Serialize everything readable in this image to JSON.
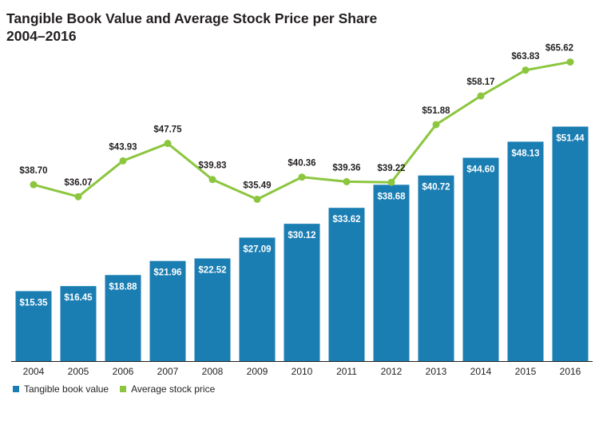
{
  "chart_data": {
    "type": "bar",
    "title": "Tangible Book Value and Average Stock Price per Share",
    "subtitle": "2004–2016",
    "categories": [
      "2004",
      "2005",
      "2006",
      "2007",
      "2008",
      "2009",
      "2010",
      "2011",
      "2012",
      "2013",
      "2014",
      "2015",
      "2016"
    ],
    "series": [
      {
        "name": "Tangible book value",
        "type": "bar",
        "color": "#1a7eb3",
        "values": [
          15.35,
          16.45,
          18.88,
          21.96,
          22.52,
          27.09,
          30.12,
          33.62,
          38.68,
          40.72,
          44.6,
          48.13,
          51.44
        ],
        "labels": [
          "$15.35",
          "$16.45",
          "$18.88",
          "$21.96",
          "$22.52",
          "$27.09",
          "$30.12",
          "$33.62",
          "$38.68",
          "$40.72",
          "$44.60",
          "$48.13",
          "$51.44"
        ]
      },
      {
        "name": "Average stock price",
        "type": "line",
        "color": "#8cc63f",
        "values": [
          38.7,
          36.07,
          43.93,
          47.75,
          39.83,
          35.49,
          40.36,
          39.36,
          39.22,
          51.88,
          58.17,
          63.83,
          65.62
        ],
        "labels": [
          "$38.70",
          "$36.07",
          "$43.93",
          "$47.75",
          "$39.83",
          "$35.49",
          "$40.36",
          "$39.36",
          "$39.22",
          "$51.88",
          "$58.17",
          "$63.83",
          "$65.62"
        ]
      }
    ],
    "ylim": [
      0,
      68
    ],
    "grid": false,
    "legend": "bottom-left"
  }
}
